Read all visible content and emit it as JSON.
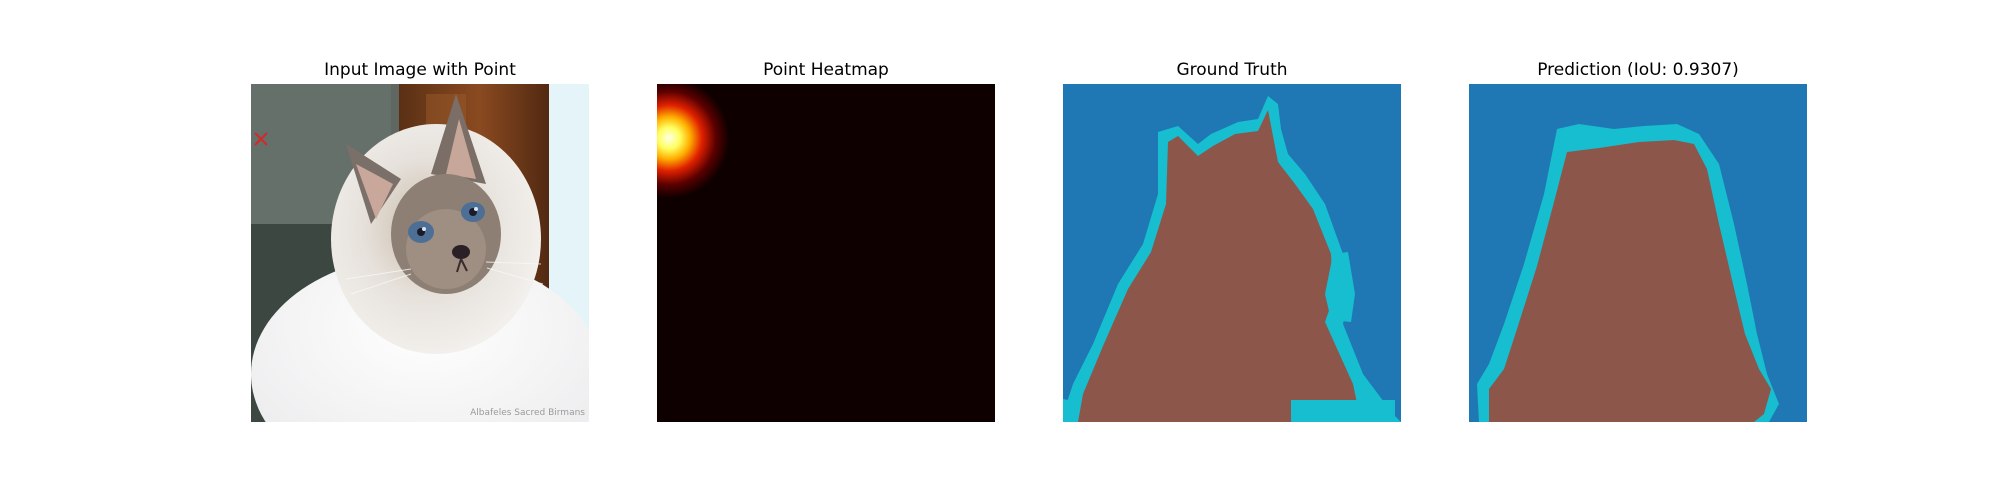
{
  "panels": [
    {
      "title": "Input Image with Point",
      "watermark": "Albafeles Sacred Birmans"
    },
    {
      "title": "Point Heatmap"
    },
    {
      "title": "Ground Truth"
    },
    {
      "title": "Prediction (IoU: 0.9307)"
    }
  ],
  "colors": {
    "background_class": "#1f77b4",
    "foreground_class": "#8c564b",
    "boundary_class": "#17becf",
    "point_marker": "#d62728",
    "heatmap_base": "#0f0000"
  }
}
